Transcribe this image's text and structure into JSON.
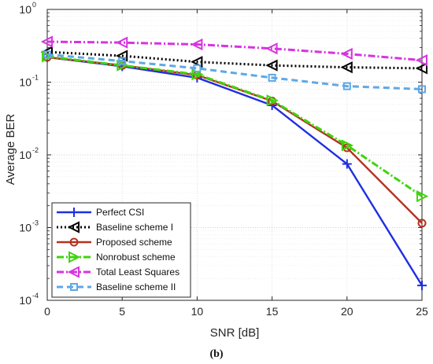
{
  "caption": "(b)",
  "chart_data": {
    "type": "line",
    "xlabel": "SNR [dB]",
    "ylabel": "Average BER",
    "xlim": [
      0,
      25
    ],
    "ylim": [
      0.0001,
      1
    ],
    "yscale": "log",
    "grid": true,
    "legend_position": "bottom-left",
    "x": [
      0,
      5,
      10,
      15,
      20,
      25
    ],
    "x_tick_labels": [
      "0",
      "5",
      "10",
      "15",
      "20",
      "25"
    ],
    "y_ticks": [
      {
        "value": 1,
        "base": "10",
        "exp": "0"
      },
      {
        "value": 0.1,
        "base": "10",
        "exp": "-1"
      },
      {
        "value": 0.01,
        "base": "10",
        "exp": "-2"
      },
      {
        "value": 0.001,
        "base": "10",
        "exp": "-3"
      },
      {
        "value": 0.0001,
        "base": "10",
        "exp": "-4"
      }
    ],
    "series": [
      {
        "name": "Perfect CSI",
        "color": "#1f2fe0",
        "dash": "",
        "marker": "plus",
        "values": [
          0.22,
          0.165,
          0.115,
          0.048,
          0.0075,
          0.00016
        ]
      },
      {
        "name": "Baseline scheme I",
        "color": "#000000",
        "dash": "2,3",
        "marker": "tri-left",
        "values": [
          0.26,
          0.23,
          0.19,
          0.17,
          0.16,
          0.155
        ]
      },
      {
        "name": "Proposed scheme",
        "color": "#b5311f",
        "dash": "",
        "marker": "circle",
        "values": [
          0.22,
          0.17,
          0.125,
          0.055,
          0.0125,
          0.00115
        ]
      },
      {
        "name": "Nonrobust scheme",
        "color": "#3fd40c",
        "dash": "9,3,2,3",
        "marker": "tri-right",
        "values": [
          0.225,
          0.17,
          0.128,
          0.056,
          0.0135,
          0.0027
        ]
      },
      {
        "name": "Total Least Squares",
        "color": "#d634e0",
        "dash": "9,3,2,3",
        "marker": "tri-left",
        "values": [
          0.36,
          0.35,
          0.33,
          0.29,
          0.245,
          0.2
        ]
      },
      {
        "name": "Baseline scheme II",
        "color": "#5fa8e6",
        "dash": "8,5",
        "marker": "square",
        "values": [
          0.24,
          0.195,
          0.155,
          0.115,
          0.088,
          0.08
        ]
      }
    ]
  }
}
